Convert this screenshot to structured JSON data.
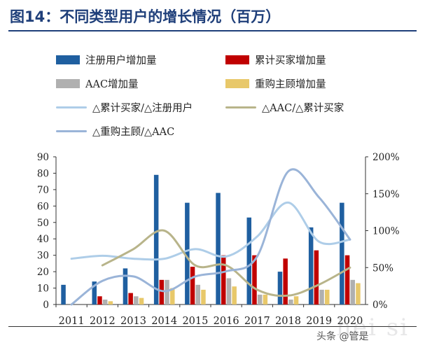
{
  "title": "图14：不同类型用户的增长情况（百万）",
  "watermark": "头条 @管是",
  "watermark_faint": "hei si",
  "colors": {
    "reg": "#1f5fa0",
    "buy": "#c00000",
    "aac": "#b0b0b0",
    "rep": "#e8c86a",
    "ratio1": "#aecde8",
    "ratio2": "#b8b48a",
    "ratio3": "#9ab4d8"
  },
  "chart_data": {
    "type": "bar",
    "categories": [
      "2011",
      "2012",
      "2013",
      "2014",
      "2015",
      "2016",
      "2017",
      "2018",
      "2019",
      "2020"
    ],
    "y_left": {
      "range": [
        0,
        90
      ],
      "ticks": [
        "0",
        "10",
        "20",
        "30",
        "40",
        "50",
        "60",
        "70",
        "80",
        "90"
      ]
    },
    "y_right": {
      "range": [
        0,
        200
      ],
      "ticks": [
        "0%",
        "50%",
        "100%",
        "150%",
        "200%"
      ]
    },
    "bar_series": [
      {
        "name": "注册用户增加量",
        "values": [
          12,
          14,
          22,
          79,
          62,
          68,
          53,
          20,
          47,
          62
        ]
      },
      {
        "name": "累计买家增加量",
        "values": [
          0,
          5,
          7,
          15,
          23,
          30,
          30,
          28,
          33,
          30
        ]
      },
      {
        "name": "AAC增加量",
        "values": [
          0,
          3,
          5,
          15,
          12,
          16,
          6,
          3,
          9,
          15
        ]
      },
      {
        "name": "重购主顾增加量",
        "values": [
          0,
          2,
          4,
          10,
          9,
          11,
          6,
          5,
          9,
          13
        ]
      }
    ],
    "line_series": [
      {
        "name": "△累计买家/△注册用户",
        "values": [
          62,
          66,
          62,
          62,
          75,
          65,
          92,
          138,
          85,
          88
        ]
      },
      {
        "name": "△AAC/△累计买家",
        "values": [
          null,
          53,
          75,
          100,
          53,
          53,
          20,
          12,
          27,
          50
        ]
      },
      {
        "name": "△重购主顾/△AAC",
        "values": [
          0,
          32,
          38,
          18,
          38,
          45,
          65,
          180,
          145,
          88
        ]
      }
    ]
  }
}
